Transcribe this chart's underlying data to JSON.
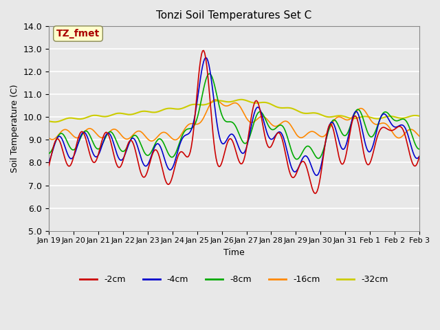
{
  "title": "Tonzi Soil Temperatures Set C",
  "xlabel": "Time",
  "ylabel": "Soil Temperature (C)",
  "ylim": [
    5.0,
    14.0
  ],
  "yticks": [
    5.0,
    6.0,
    7.0,
    8.0,
    9.0,
    10.0,
    11.0,
    12.0,
    13.0,
    14.0
  ],
  "xtick_labels": [
    "Jan 19",
    "Jan 20",
    "Jan 21",
    "Jan 22",
    "Jan 23",
    "Jan 24",
    "Jan 25",
    "Jan 26",
    "Jan 27",
    "Jan 28",
    "Jan 29",
    "Jan 30",
    "Jan 31",
    "Feb 1",
    "Feb 2",
    "Feb 3"
  ],
  "annotation_text": "TZ_fmet",
  "annotation_color": "#aa0000",
  "annotation_bg": "#ffffcc",
  "line_colors": {
    "-2cm": "#cc0000",
    "-4cm": "#0000cc",
    "-8cm": "#00aa00",
    "-16cm": "#ff8800",
    "-32cm": "#cccc00"
  },
  "legend_labels": [
    "-2cm",
    "-4cm",
    "-8cm",
    "-16cm",
    "-32cm"
  ],
  "bg_color": "#e8e8e8",
  "grid_color": "#ffffff",
  "n_days": 15
}
